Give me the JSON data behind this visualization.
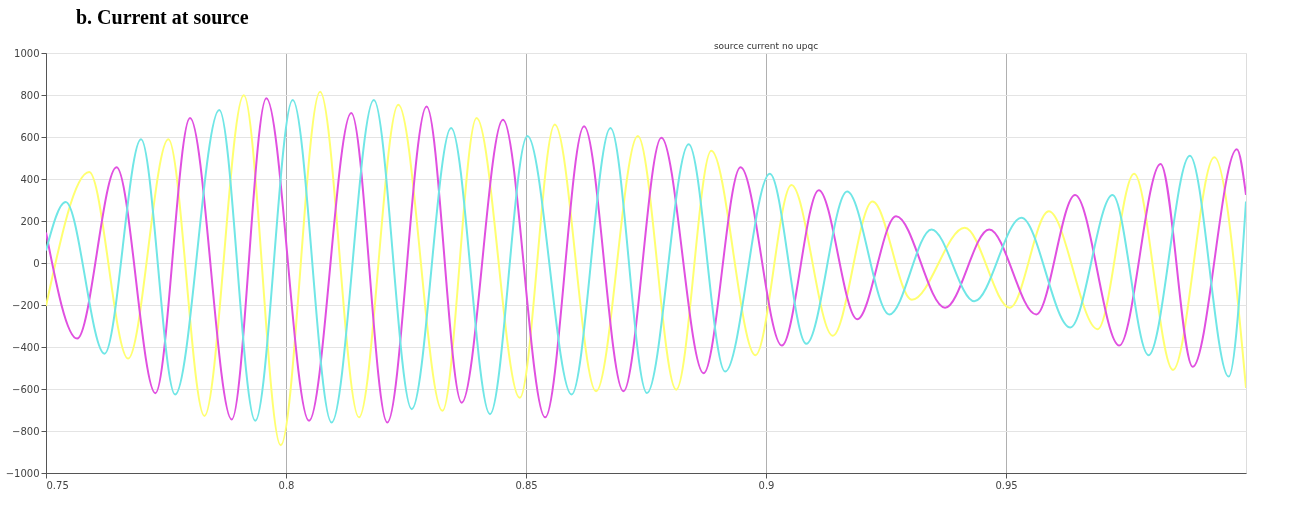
{
  "chart_data": {
    "type": "line",
    "title": "b.    Current  at source",
    "subtitle": "source current no upqc",
    "xlim": [
      0.75,
      1.0
    ],
    "xticks": [
      0.75,
      0.8,
      0.85,
      0.9,
      0.95
    ],
    "ylim": [
      -1000,
      1000
    ],
    "yticks": [
      -1000,
      -800,
      -600,
      -400,
      -200,
      0,
      200,
      400,
      600,
      800,
      1000
    ],
    "grid": true,
    "legend": false,
    "line_style": "solid",
    "series": [
      {
        "color": "#ffff70",
        "x": [
          0.75,
          0.759,
          0.7671,
          0.7755,
          0.783,
          0.7912,
          0.7989,
          0.8071,
          0.8152,
          0.8234,
          0.8326,
          0.8397,
          0.8487,
          0.856,
          0.8646,
          0.8733,
          0.8813,
          0.8886,
          0.8978,
          0.9053,
          0.9139,
          0.9222,
          0.9304,
          0.9414,
          0.9508,
          0.9589,
          0.9691,
          0.9767,
          0.9848,
          0.9934,
          1.0
        ],
        "values": [
          -205,
          433,
          -455,
          589,
          -728,
          799,
          -868,
          815,
          -735,
          753,
          -704,
          690,
          -642,
          659,
          -611,
          605,
          -603,
          534,
          -439,
          371,
          -346,
          293,
          -175,
          168,
          -213,
          246,
          -315,
          425,
          -509,
          503,
          -595
        ]
      },
      {
        "color": "#e050e0",
        "x": [
          0.75,
          0.7565,
          0.7647,
          0.7728,
          0.78,
          0.7887,
          0.7959,
          0.8048,
          0.8136,
          0.8211,
          0.8293,
          0.8366,
          0.8452,
          0.854,
          0.8621,
          0.8703,
          0.8782,
          0.887,
          0.8947,
          0.9033,
          0.911,
          0.919,
          0.9271,
          0.9373,
          0.9465,
          0.9563,
          0.9644,
          0.9736,
          0.9822,
          0.9889,
          0.9981,
          1.0
        ],
        "values": [
          145,
          -360,
          456,
          -620,
          690,
          -745,
          784,
          -751,
          714,
          -759,
          745,
          -665,
          682,
          -735,
          651,
          -611,
          597,
          -525,
          456,
          -393,
          347,
          -268,
          223,
          -213,
          160,
          -245,
          324,
          -393,
          472,
          -494,
          542,
          324
        ]
      },
      {
        "color": "#70e6e6",
        "x": [
          0.75,
          0.7541,
          0.7622,
          0.7698,
          0.7769,
          0.7861,
          0.7936,
          0.8014,
          0.8095,
          0.8183,
          0.8262,
          0.8344,
          0.8425,
          0.8503,
          0.8595,
          0.8676,
          0.8752,
          0.8839,
          0.8915,
          0.9008,
          0.9084,
          0.9169,
          0.9257,
          0.9345,
          0.9434,
          0.9532,
          0.9634,
          0.9722,
          0.9797,
          0.9883,
          0.9964,
          1.0
        ],
        "values": [
          60,
          290,
          -432,
          589,
          -626,
          729,
          -751,
          776,
          -759,
          776,
          -696,
          643,
          -720,
          605,
          -626,
          643,
          -619,
          566,
          -517,
          425,
          -385,
          340,
          -245,
          160,
          -182,
          215,
          -307,
          324,
          -439,
          511,
          -541,
          293
        ]
      }
    ]
  }
}
